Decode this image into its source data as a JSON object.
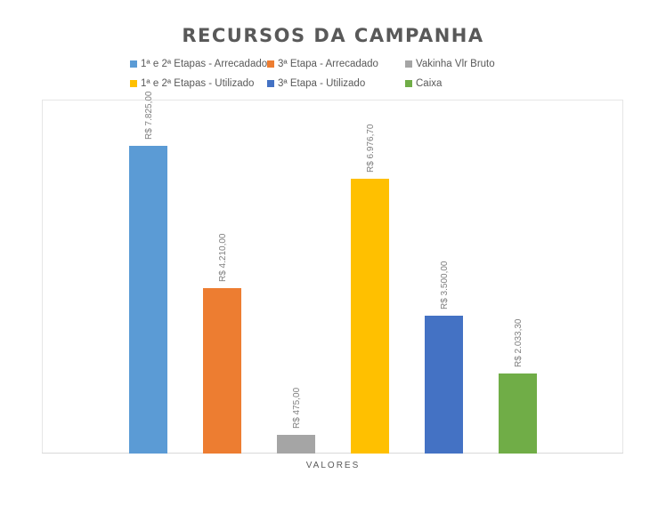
{
  "chart_data": {
    "type": "bar",
    "title": "RECURSOS DA CAMPANHA",
    "xlabel": "VALORES",
    "ylabel": "",
    "categories": [
      "VALORES"
    ],
    "ylim": [
      0,
      9000
    ],
    "grid": false,
    "legend_position": "top",
    "series": [
      {
        "name": "1ª e 2ª Etapas - Arrecadado",
        "values": [
          7825.0
        ],
        "label": "R$ 7.825,00",
        "color": "#5b9bd5"
      },
      {
        "name": "3ª Etapa - Arrecadado",
        "values": [
          4210.0
        ],
        "label": "R$ 4.210,00",
        "color": "#ed7d31"
      },
      {
        "name": "Vakinha Vlr Bruto",
        "values": [
          475.0
        ],
        "label": "R$ 475,00",
        "color": "#a5a5a5"
      },
      {
        "name": "1ª e 2ª Etapas - Utilizado",
        "values": [
          6976.7
        ],
        "label": "R$ 6.976,70",
        "color": "#ffc000"
      },
      {
        "name": "3ª Etapa - Utilizado",
        "values": [
          3500.0
        ],
        "label": "R$ 3.500,00",
        "color": "#4472c4"
      },
      {
        "name": "Caixa",
        "values": [
          2033.3
        ],
        "label": "R$ 2.033,30",
        "color": "#70ad47"
      }
    ]
  }
}
